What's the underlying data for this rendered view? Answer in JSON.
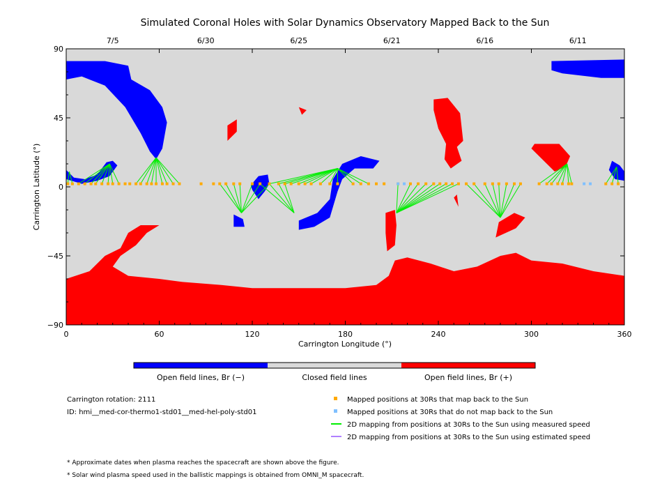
{
  "chart_data": {
    "type": "map",
    "title": "Simulated Coronal Holes with Solar Dynamics Observatory Mapped Back to the Sun",
    "xlabel": "Carrington Longitude (°)",
    "ylabel": "Carrington Latitude (°)",
    "xlim": [
      0,
      360
    ],
    "ylim": [
      -90,
      90
    ],
    "x_ticks": [
      0,
      60,
      120,
      180,
      240,
      300,
      360
    ],
    "y_ticks": [
      -90,
      -45,
      0,
      45,
      90
    ],
    "y_tick_labels": [
      "−90",
      "−45",
      "0",
      "45",
      "90"
    ],
    "top_dates": [
      {
        "label": "7/5",
        "lon": 30
      },
      {
        "label": "6/30",
        "lon": 90
      },
      {
        "label": "6/25",
        "lon": 150
      },
      {
        "label": "6/21",
        "lon": 210
      },
      {
        "label": "6/16",
        "lon": 270
      },
      {
        "label": "6/11",
        "lon": 330
      }
    ],
    "colors": {
      "negative": "#0000ff",
      "closed": "#d9d9d9",
      "positive": "#ff0000",
      "mapped": "#ffaa00",
      "unmapped": "#80c0ff",
      "measured": "#00ee00",
      "estimated": "#b080ff"
    },
    "regions": {
      "negative": [
        [
          [
            0,
            82
          ],
          [
            25,
            82
          ],
          [
            40,
            79
          ],
          [
            42,
            70
          ],
          [
            54,
            63
          ],
          [
            62,
            52
          ],
          [
            65,
            42
          ],
          [
            62,
            25
          ],
          [
            58,
            18
          ],
          [
            54,
            23
          ],
          [
            48,
            35
          ],
          [
            38,
            52
          ],
          [
            25,
            66
          ],
          [
            10,
            72
          ],
          [
            0,
            70
          ]
        ],
        [
          [
            313,
            82
          ],
          [
            360,
            83
          ],
          [
            360,
            71
          ],
          [
            345,
            71
          ],
          [
            320,
            74
          ],
          [
            313,
            76
          ]
        ],
        [
          [
            0,
            11
          ],
          [
            5,
            6
          ],
          [
            12,
            5
          ],
          [
            20,
            8
          ],
          [
            26,
            16
          ],
          [
            30,
            17
          ],
          [
            33,
            14
          ],
          [
            28,
            7
          ],
          [
            20,
            4
          ],
          [
            10,
            2
          ],
          [
            0,
            5
          ]
        ],
        [
          [
            119,
            1
          ],
          [
            124,
            7
          ],
          [
            130,
            8
          ],
          [
            131,
            2
          ],
          [
            128,
            -3
          ],
          [
            124,
            -8
          ],
          [
            120,
            -2
          ]
        ],
        [
          [
            108,
            -18
          ],
          [
            114,
            -21
          ],
          [
            115,
            -26
          ],
          [
            108,
            -26
          ]
        ],
        [
          [
            150,
            -22
          ],
          [
            162,
            -17
          ],
          [
            170,
            -8
          ],
          [
            172,
            5
          ],
          [
            178,
            15
          ],
          [
            190,
            20
          ],
          [
            202,
            17
          ],
          [
            198,
            12
          ],
          [
            186,
            12
          ],
          [
            178,
            5
          ],
          [
            175,
            -3
          ],
          [
            170,
            -20
          ],
          [
            160,
            -26
          ],
          [
            150,
            -28
          ]
        ],
        [
          [
            352,
            17
          ],
          [
            357,
            14
          ],
          [
            360,
            10
          ],
          [
            360,
            4
          ],
          [
            354,
            5
          ],
          [
            350,
            11
          ]
        ]
      ],
      "positive": [
        [
          [
            0,
            -60
          ],
          [
            15,
            -55
          ],
          [
            25,
            -45
          ],
          [
            35,
            -40
          ],
          [
            40,
            -30
          ],
          [
            48,
            -25
          ],
          [
            60,
            -25
          ],
          [
            52,
            -30
          ],
          [
            45,
            -38
          ],
          [
            35,
            -45
          ],
          [
            30,
            -52
          ],
          [
            40,
            -58
          ],
          [
            60,
            -60
          ],
          [
            75,
            -62
          ],
          [
            100,
            -64
          ],
          [
            120,
            -66
          ],
          [
            150,
            -66
          ],
          [
            180,
            -66
          ],
          [
            200,
            -64
          ],
          [
            208,
            -58
          ],
          [
            212,
            -48
          ],
          [
            220,
            -46
          ],
          [
            235,
            -50
          ],
          [
            250,
            -55
          ],
          [
            265,
            -52
          ],
          [
            280,
            -45
          ],
          [
            290,
            -43
          ],
          [
            300,
            -48
          ],
          [
            320,
            -50
          ],
          [
            340,
            -55
          ],
          [
            360,
            -58
          ],
          [
            360,
            -90
          ],
          [
            0,
            -90
          ]
        ],
        [
          [
            207,
            -42
          ],
          [
            212,
            -38
          ],
          [
            213,
            -25
          ],
          [
            212,
            -15
          ],
          [
            206,
            -17
          ],
          [
            206,
            -30
          ]
        ],
        [
          [
            237,
            57
          ],
          [
            246,
            58
          ],
          [
            254,
            48
          ],
          [
            256,
            30
          ],
          [
            252,
            26
          ],
          [
            255,
            17
          ],
          [
            248,
            12
          ],
          [
            244,
            18
          ],
          [
            245,
            28
          ],
          [
            240,
            38
          ],
          [
            237,
            50
          ]
        ],
        [
          [
            277,
            -33
          ],
          [
            290,
            -27
          ],
          [
            296,
            -20
          ],
          [
            289,
            -17
          ],
          [
            279,
            -23
          ]
        ],
        [
          [
            302,
            28
          ],
          [
            318,
            28
          ],
          [
            325,
            20
          ],
          [
            322,
            13
          ],
          [
            315,
            10
          ],
          [
            300,
            25
          ]
        ],
        [
          [
            104,
            40
          ],
          [
            110,
            44
          ],
          [
            110,
            36
          ],
          [
            104,
            30
          ]
        ],
        [
          [
            150,
            52
          ],
          [
            155,
            50
          ],
          [
            152,
            47
          ]
        ],
        [
          [
            250,
            -7
          ],
          [
            253,
            -13
          ],
          [
            252,
            -5
          ]
        ]
      ]
    },
    "mapped_positions_lon": [
      1,
      4,
      8,
      12,
      16,
      19,
      23,
      27,
      30,
      34,
      38,
      41,
      45,
      48,
      52,
      55,
      58,
      62,
      65,
      69,
      73,
      87,
      95,
      99,
      103,
      108,
      112,
      120,
      125,
      131,
      137,
      141,
      145,
      150,
      154,
      158,
      164,
      170,
      175,
      185,
      190,
      195,
      200,
      205,
      214,
      222,
      227,
      232,
      237,
      241,
      245,
      249,
      253,
      258,
      263,
      270,
      275,
      279,
      284,
      289,
      293,
      305,
      310,
      313,
      317,
      320,
      324,
      326,
      348,
      352,
      356
    ],
    "unmapped_positions_lon": [
      214,
      218,
      334,
      338
    ],
    "measured_speed_lines": [
      {
        "sun": [
          28,
          15
        ],
        "lons": [
          8,
          12,
          16,
          19,
          23,
          27,
          30,
          34
        ]
      },
      {
        "sun": [
          58,
          19
        ],
        "lons": [
          45,
          48,
          52,
          55,
          58,
          62,
          65,
          69,
          73
        ]
      },
      {
        "sun": [
          113,
          -17
        ],
        "lons": [
          99,
          103,
          108,
          112,
          120,
          125,
          131
        ]
      },
      {
        "sun": [
          175,
          12
        ],
        "lons": [
          131,
          137,
          141,
          145,
          150,
          154,
          158,
          164,
          170,
          175,
          185,
          190,
          195
        ]
      },
      {
        "sun": [
          147,
          -17
        ],
        "lons": [
          125,
          131,
          137,
          141
        ]
      },
      {
        "sun": [
          213,
          -17
        ],
        "lons": [
          214,
          222,
          227,
          232,
          237,
          241,
          245,
          249,
          253
        ]
      },
      {
        "sun": [
          280,
          -20
        ],
        "lons": [
          258,
          263,
          270,
          275,
          279,
          284,
          289,
          293
        ]
      },
      {
        "sun": [
          323,
          15
        ],
        "lons": [
          305,
          310,
          313,
          317,
          320,
          324,
          326
        ]
      },
      {
        "sun": [
          355,
          13
        ],
        "lons": [
          348,
          352,
          356
        ]
      },
      {
        "sun": [
          2,
          10
        ],
        "lons": [
          1,
          4
        ]
      }
    ],
    "colorbar_labels": [
      "Open field lines, Br (−)",
      "Closed field lines",
      "Open field lines, Br (+)"
    ],
    "info": [
      "Carrington rotation: 2111",
      "ID: hmi__med-cor-thermo1-std01__med-hel-poly-std01"
    ],
    "legend": [
      {
        "label": "Mapped positions at 30Rs that map back to the Sun",
        "kind": "square",
        "color": "#ffaa00"
      },
      {
        "label": "Mapped positions at 30Rs that do not map back to the Sun",
        "kind": "square",
        "color": "#80c0ff"
      },
      {
        "label": "2D mapping from positions at 30Rs to the Sun using measured speed",
        "kind": "line",
        "color": "#00ee00"
      },
      {
        "label": "2D mapping from positions at 30Rs to the Sun using estimated speed",
        "kind": "line",
        "color": "#b080ff"
      }
    ],
    "footnotes": [
      "* Approximate dates when plasma reaches the spacecraft are shown above the figure.",
      "* Solar wind plasma speed used in the ballistic mappings is obtained from OMNI_M spacecraft."
    ]
  }
}
